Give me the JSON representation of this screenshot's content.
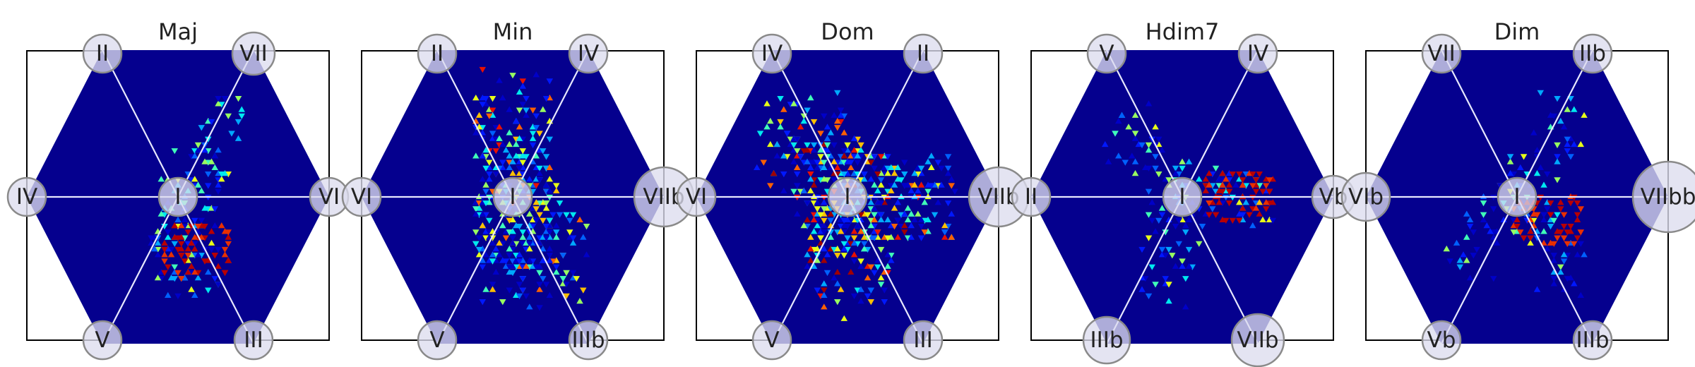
{
  "chart_data": [
    {
      "type": "heatmap",
      "title": "Maj",
      "labels": {
        "top_left": "II",
        "top_right": "VII",
        "left": "IV",
        "center": "I",
        "right": "VI",
        "bottom_left": "V",
        "bottom_right": "III"
      },
      "highlight": {
        "top_right": true
      },
      "density": 0.35,
      "hot": [
        "NE",
        "S",
        "SSE"
      ]
    },
    {
      "type": "heatmap",
      "title": "Min",
      "labels": {
        "top_left": "II",
        "top_right": "IV",
        "left": "VI",
        "center": "I",
        "right": "VIIb",
        "bottom_left": "V",
        "bottom_right": "IIIb"
      },
      "highlight": {
        "right": true
      },
      "density": 1.0,
      "hot": [
        "N",
        "SE",
        "S"
      ]
    },
    {
      "type": "heatmap",
      "title": "Dom",
      "labels": {
        "top_left": "IV",
        "top_right": "II",
        "left": "VI",
        "center": "I",
        "right": "VIIb",
        "bottom_left": "V",
        "bottom_right": "III"
      },
      "highlight": {
        "right": true
      },
      "density": 1.3,
      "hot": [
        "NW",
        "E",
        "S"
      ]
    },
    {
      "type": "heatmap",
      "title": "Hdim7",
      "labels": {
        "top_left": "V",
        "top_right": "IV",
        "left": "II",
        "center": "I",
        "right": "Vb",
        "bottom_left": "IIIb",
        "bottom_right": "VIIb"
      },
      "highlight": {
        "bottom_right": true
      },
      "density": 0.35,
      "hot": [
        "NW",
        "E",
        "SSW"
      ]
    },
    {
      "type": "heatmap",
      "title": "Dim",
      "labels": {
        "top_left": "VII",
        "top_right": "IIb",
        "left": "VIb",
        "center": "I",
        "right": "VIIbb",
        "bottom_left": "Vb",
        "bottom_right": "IIIb"
      },
      "highlight": {
        "right": true
      },
      "density": 0.3,
      "hot": [
        "NE",
        "SE",
        "SW"
      ]
    }
  ]
}
